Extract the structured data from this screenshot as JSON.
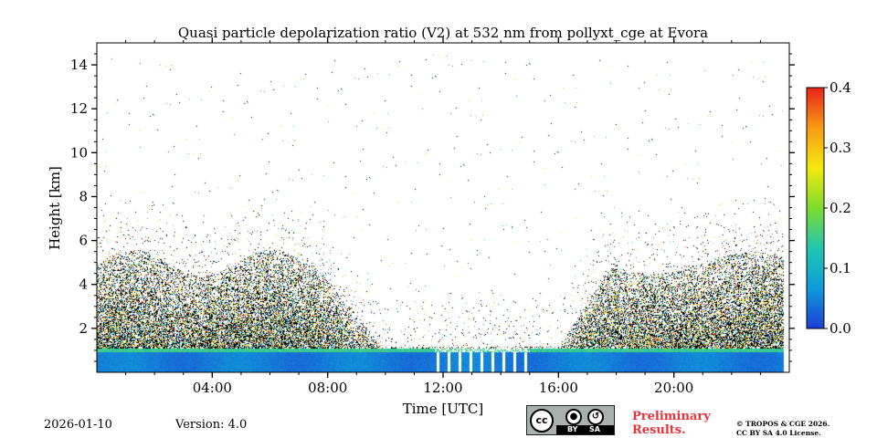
{
  "chart_data": {
    "type": "heatmap",
    "title": "Quasi particle depolarization ratio (V2) at 532 nm from pollyxt_cge at Evora",
    "xlabel": "Time [UTC]",
    "ylabel": "Height [km]",
    "xlim_hours": [
      0,
      24
    ],
    "ylim_km": [
      0,
      15
    ],
    "x_ticks": [
      {
        "value": 4,
        "label": "04:00"
      },
      {
        "value": 8,
        "label": "08:00"
      },
      {
        "value": 12,
        "label": "12:00"
      },
      {
        "value": 16,
        "label": "16:00"
      },
      {
        "value": 20,
        "label": "20:00"
      }
    ],
    "y_ticks": [
      {
        "value": 2,
        "label": "2"
      },
      {
        "value": 4,
        "label": "4"
      },
      {
        "value": 6,
        "label": "6"
      },
      {
        "value": 8,
        "label": "8"
      },
      {
        "value": 10,
        "label": "10"
      },
      {
        "value": 12,
        "label": "12"
      },
      {
        "value": 14,
        "label": "14"
      }
    ],
    "colorbar": {
      "range": [
        0.0,
        0.4
      ],
      "ticks": [
        {
          "value": 0.0,
          "label": "0.0"
        },
        {
          "value": 0.1,
          "label": "0.1"
        },
        {
          "value": 0.2,
          "label": "0.2"
        },
        {
          "value": 0.3,
          "label": "0.3"
        },
        {
          "value": 0.4,
          "label": "0.4"
        }
      ],
      "colormap": [
        "#1e3dd6",
        "#0f9bd8",
        "#22c6b3",
        "#7ddc2f",
        "#f4e90e",
        "#f89b16",
        "#e8221b"
      ]
    },
    "regions": [
      {
        "name": "boundary layer depolarization",
        "time_range_h": [
          0,
          23.8
        ],
        "height_km": [
          0.0,
          1.0
        ],
        "value_approx": 0.05
      },
      {
        "name": "thin top of boundary layer",
        "time_range_h": [
          0,
          23.8
        ],
        "height_km": [
          0.9,
          1.1
        ],
        "value_approx": 0.15
      },
      {
        "name": "night-time noisy aerosol layer (early)",
        "time_range_h": [
          0,
          8.5
        ],
        "height_km": [
          1.0,
          5.5
        ],
        "value_approx": "noisy 0.0-0.4"
      },
      {
        "name": "night-time noisy aerosol layer (late)",
        "time_range_h": [
          17.5,
          23.8
        ],
        "height_km": [
          1.0,
          5.5
        ],
        "value_approx": "noisy 0.0-0.4"
      },
      {
        "name": "sparse high-altitude noise",
        "time_range_h": [
          0,
          23.8
        ],
        "height_km": [
          5.5,
          14.5
        ],
        "value_approx": "noise"
      },
      {
        "name": "no-data gaps (daytime)",
        "time_range_h": [
          11.7,
          15.0
        ],
        "height_km": [
          0.0,
          1.2
        ],
        "value_approx": null
      }
    ]
  },
  "footer": {
    "date": "2026-01-10",
    "version": "Version: 4.0",
    "preliminary_line1": "Preliminary",
    "preliminary_line2": "Results.",
    "license_line1": "© TROPOS & CGE 2026.",
    "license_line2": "CC BY SA 4.0 License.",
    "cc_badge": {
      "cc": "cc",
      "by": "BY",
      "sa": "SA"
    }
  }
}
